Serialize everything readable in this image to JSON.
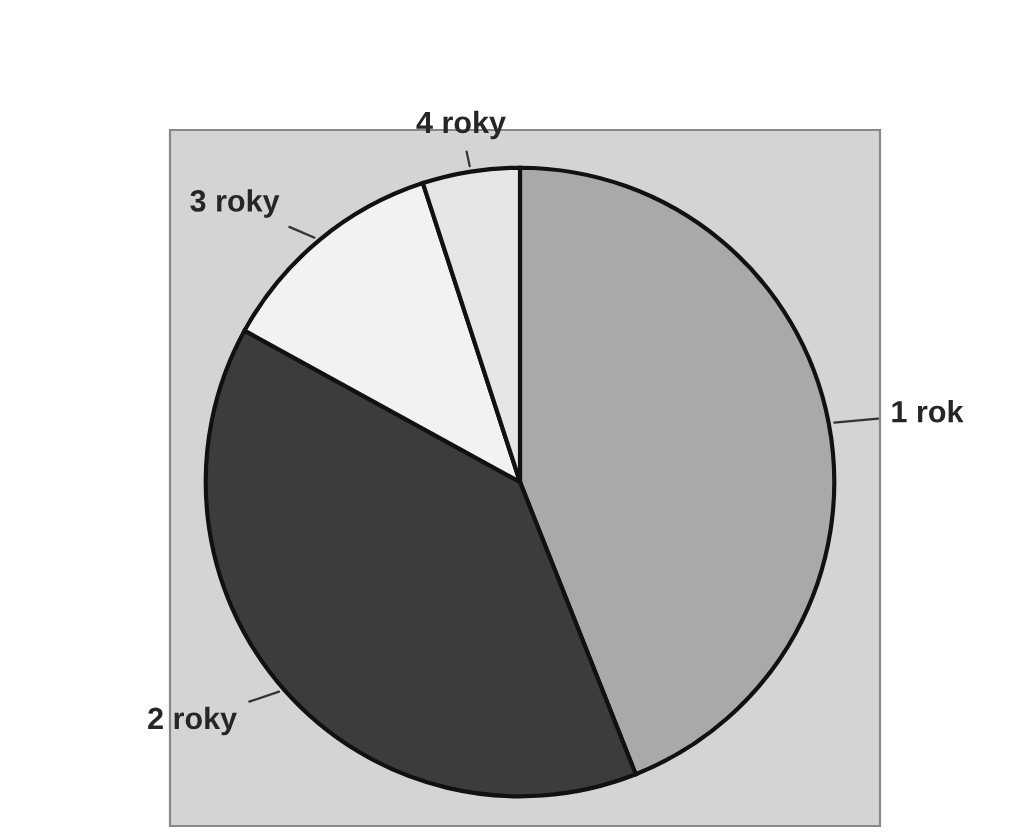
{
  "chart_data": {
    "type": "pie",
    "categories": [
      "1 rok",
      "2 roky",
      "3 roky",
      "4 roky"
    ],
    "values": [
      44,
      39,
      12,
      5
    ],
    "colors": [
      "#a9a9a9",
      "#3c3c3c",
      "#f2f2f2",
      "#e6e6e6"
    ]
  }
}
